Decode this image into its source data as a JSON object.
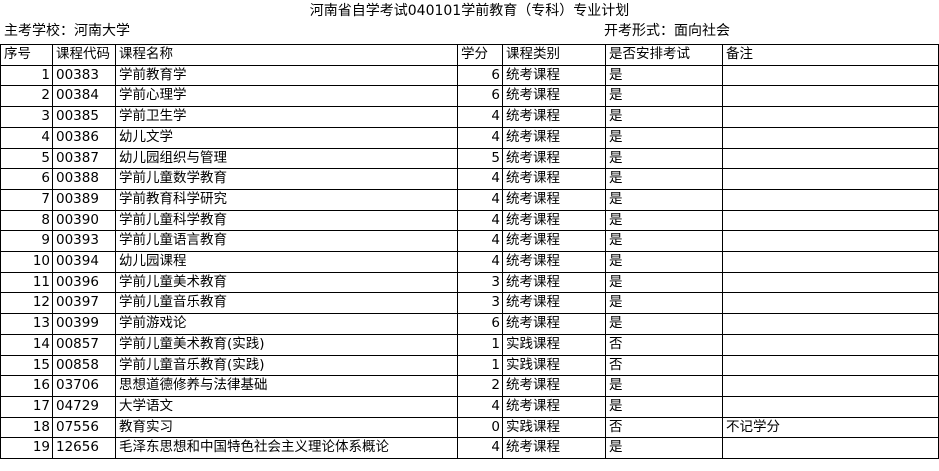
{
  "title": "河南省自学考试040101学前教育（专科）专业计划",
  "meta": {
    "school": "主考学校：河南大学",
    "exam_form": "开考形式：面向社会"
  },
  "table": {
    "headers": [
      "序号",
      "课程代码",
      "课程名称",
      "学分",
      "课程类别",
      "是否安排考试",
      "备注"
    ],
    "rows": [
      [
        "1",
        "00383",
        "学前教育学",
        "6",
        "统考课程",
        "是",
        ""
      ],
      [
        "2",
        "00384",
        "学前心理学",
        "6",
        "统考课程",
        "是",
        ""
      ],
      [
        "3",
        "00385",
        "学前卫生学",
        "4",
        "统考课程",
        "是",
        ""
      ],
      [
        "4",
        "00386",
        "幼儿文学",
        "4",
        "统考课程",
        "是",
        ""
      ],
      [
        "5",
        "00387",
        "幼儿园组织与管理",
        "5",
        "统考课程",
        "是",
        ""
      ],
      [
        "6",
        "00388",
        "学前儿童数学教育",
        "4",
        "统考课程",
        "是",
        ""
      ],
      [
        "7",
        "00389",
        "学前教育科学研究",
        "4",
        "统考课程",
        "是",
        ""
      ],
      [
        "8",
        "00390",
        "学前儿童科学教育",
        "4",
        "统考课程",
        "是",
        ""
      ],
      [
        "9",
        "00393",
        "学前儿童语言教育",
        "4",
        "统考课程",
        "是",
        ""
      ],
      [
        "10",
        "00394",
        "幼儿园课程",
        "4",
        "统考课程",
        "是",
        ""
      ],
      [
        "11",
        "00396",
        "学前儿童美术教育",
        "3",
        "统考课程",
        "是",
        ""
      ],
      [
        "12",
        "00397",
        "学前儿童音乐教育",
        "3",
        "统考课程",
        "是",
        ""
      ],
      [
        "13",
        "00399",
        "学前游戏论",
        "6",
        "统考课程",
        "是",
        ""
      ],
      [
        "14",
        "00857",
        "学前儿童美术教育(实践)",
        "1",
        "实践课程",
        "否",
        ""
      ],
      [
        "15",
        "00858",
        "学前儿童音乐教育(实践)",
        "1",
        "实践课程",
        "否",
        ""
      ],
      [
        "16",
        "03706",
        "思想道德修养与法律基础",
        "2",
        "统考课程",
        "是",
        ""
      ],
      [
        "17",
        "04729",
        "大学语文",
        "4",
        "统考课程",
        "是",
        ""
      ],
      [
        "18",
        "07556",
        "教育实习",
        "0",
        "实践课程",
        "否",
        "不记学分"
      ],
      [
        "19",
        "12656",
        "毛泽东思想和中国特色社会主义理论体系概论",
        "4",
        "统考课程",
        "是",
        ""
      ]
    ]
  }
}
